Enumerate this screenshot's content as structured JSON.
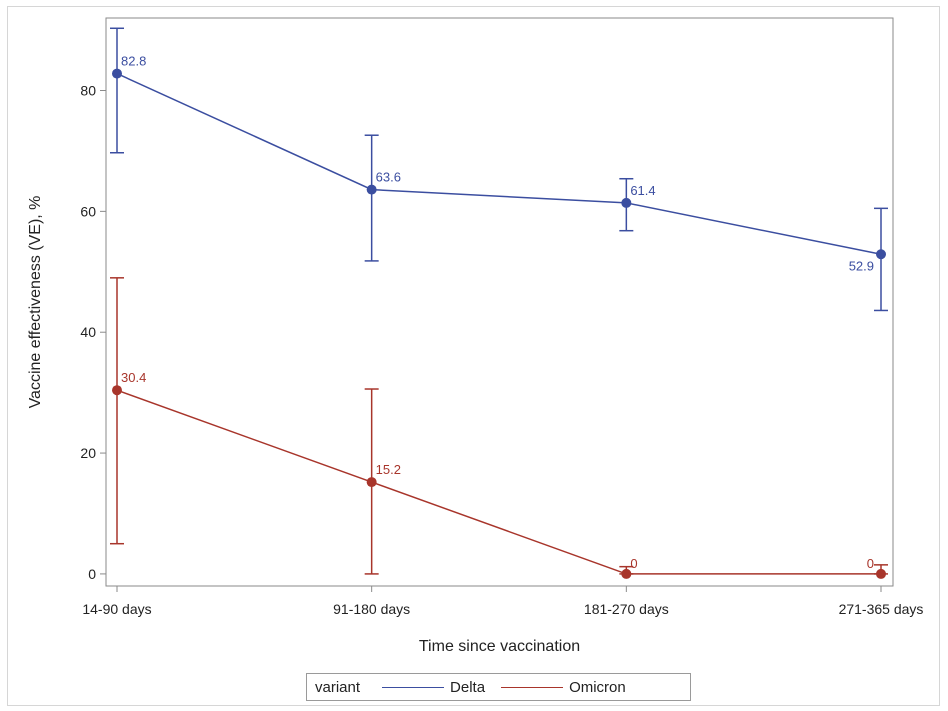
{
  "chart_data": {
    "type": "line",
    "title": "",
    "xlabel": "Time since vaccination",
    "ylabel": "Vaccine effectiveness (VE), %",
    "categories": [
      "14-90 days",
      "91-180 days",
      "181-270 days",
      "271-365 days"
    ],
    "yticks": [
      0,
      20,
      40,
      60,
      80
    ],
    "ylim": [
      -2,
      92
    ],
    "grid": false,
    "legend": {
      "title": "variant",
      "placement": "bottom-center"
    },
    "series": [
      {
        "name": "Delta",
        "color": "#3b4ea0",
        "values": [
          82.8,
          63.6,
          61.4,
          52.9
        ],
        "lower": [
          69.7,
          51.8,
          56.8,
          43.6
        ],
        "upper": [
          90.3,
          72.6,
          65.4,
          60.5
        ],
        "labels": [
          "82.8",
          "63.6",
          "61.4",
          "52.9"
        ]
      },
      {
        "name": "Omicron",
        "color": "#a8352b",
        "values": [
          30.4,
          15.2,
          0,
          0
        ],
        "lower": [
          5.0,
          0,
          0,
          0
        ],
        "upper": [
          49.0,
          30.6,
          1.2,
          1.5
        ],
        "labels": [
          "30.4",
          "15.2",
          "0",
          "0"
        ]
      }
    ]
  }
}
